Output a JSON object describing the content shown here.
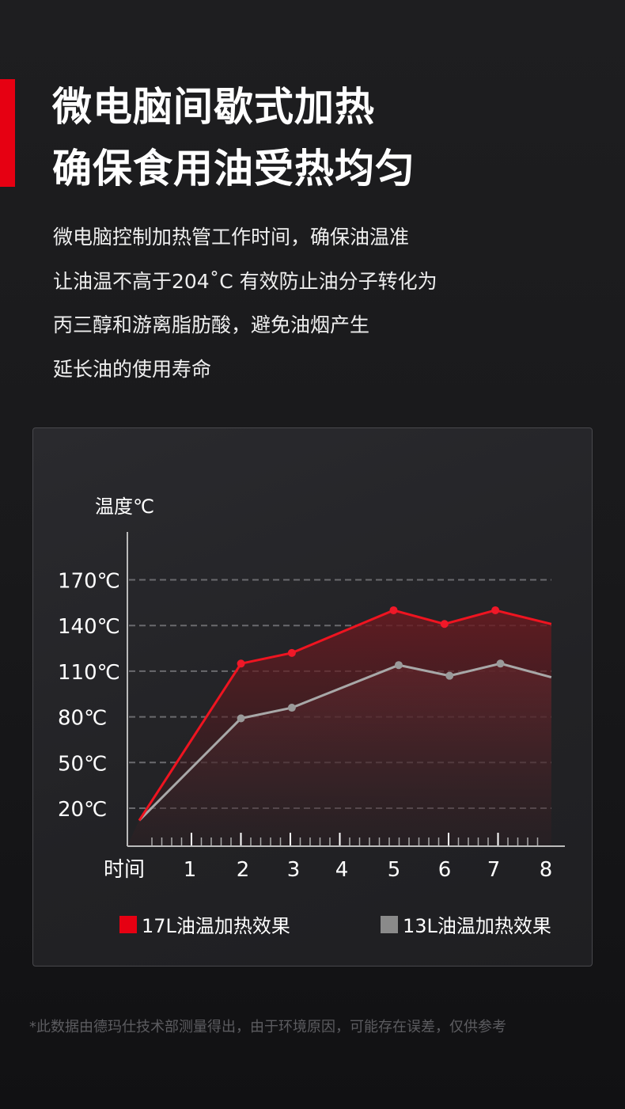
{
  "title_lines": [
    "微电脑间歇式加热",
    "确保食用油受热均匀"
  ],
  "description_lines": [
    "微电脑控制加热管工作时间，确保油温准",
    "让油温不高于204˚C 有效防止油分子转化为",
    "丙三醇和游离脂肪酸，避免油烟产生",
    "延长油的使用寿命"
  ],
  "accent_color": "#e60012",
  "chart_data": {
    "type": "area",
    "ylabel": "温度℃",
    "xlabel": "时间",
    "x_ticks": [
      "1",
      "2",
      "3",
      "4",
      "5",
      "6",
      "7",
      "8"
    ],
    "y_ticks": [
      "20℃",
      "50℃",
      "80℃",
      "110℃",
      "140℃",
      "170℃"
    ],
    "y_tick_values": [
      20,
      50,
      80,
      110,
      140,
      170
    ],
    "grid": "dashed-horizontal",
    "legend_placement": "bottom",
    "series": [
      {
        "name": "17L油温加热效果",
        "color": "#e60012",
        "x": [
          0,
          2,
          3,
          5,
          6,
          7,
          8.1
        ],
        "values": [
          12,
          115,
          122,
          150,
          141,
          150,
          141
        ]
      },
      {
        "name": "13L油温加热效果",
        "color": "#8a8a8a",
        "x": [
          0,
          2,
          3,
          5.1,
          6.1,
          7.1,
          8.1
        ],
        "values": [
          12,
          79,
          86,
          114,
          107,
          115,
          106
        ]
      }
    ]
  },
  "footnote": "*此数据由德玛仕技术部测量得出，由于环境原因，可能存在误差，仅供参考"
}
